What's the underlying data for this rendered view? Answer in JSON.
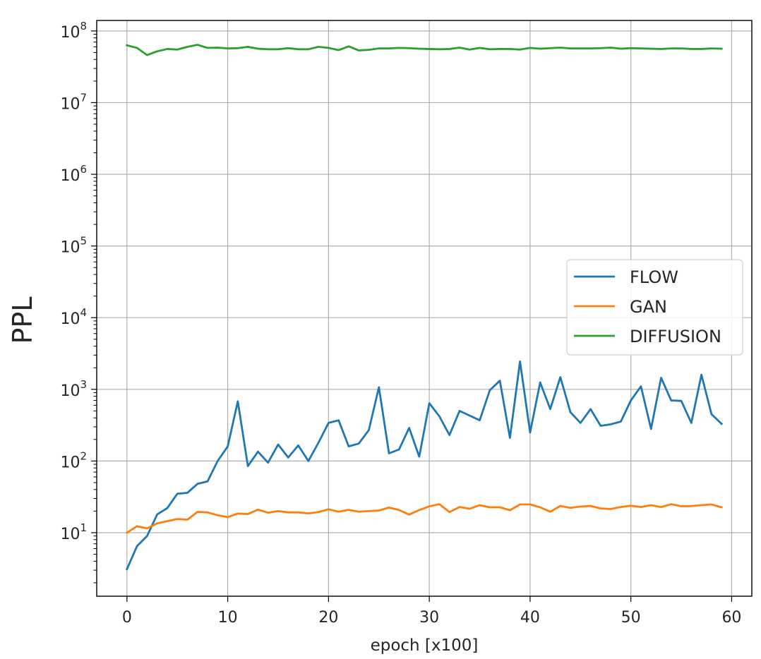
{
  "chart_data": {
    "type": "line",
    "xlabel": "epoch [x100]",
    "ylabel": "PPL",
    "yscale": "log",
    "xlim": [
      -3,
      62
    ],
    "ylim": [
      1.3,
      140000000
    ],
    "x_ticks": [
      0,
      10,
      20,
      30,
      40,
      50,
      60
    ],
    "x_tick_labels": [
      "0",
      "10",
      "20",
      "30",
      "40",
      "50",
      "60"
    ],
    "y_ticks": [
      10,
      100,
      1000,
      10000,
      100000,
      1000000,
      10000000,
      100000000
    ],
    "y_tick_labels": [
      {
        "base": "10",
        "exp": "1"
      },
      {
        "base": "10",
        "exp": "2"
      },
      {
        "base": "10",
        "exp": "3"
      },
      {
        "base": "10",
        "exp": "4"
      },
      {
        "base": "10",
        "exp": "5"
      },
      {
        "base": "10",
        "exp": "6"
      },
      {
        "base": "10",
        "exp": "7"
      },
      {
        "base": "10",
        "exp": "8"
      }
    ],
    "grid": true,
    "legend_position": "center-right",
    "x": [
      0,
      1,
      2,
      3,
      4,
      5,
      6,
      7,
      8,
      9,
      10,
      11,
      12,
      13,
      14,
      15,
      16,
      17,
      18,
      19,
      20,
      21,
      22,
      23,
      24,
      25,
      26,
      27,
      28,
      29,
      30,
      31,
      32,
      33,
      34,
      35,
      36,
      37,
      38,
      39,
      40,
      41,
      42,
      43,
      44,
      45,
      46,
      47,
      48,
      49,
      50,
      51,
      52,
      53,
      54,
      55,
      56,
      57,
      58,
      59
    ],
    "series": [
      {
        "name": "FLOW",
        "color": "#1f77b4",
        "values": [
          3.1,
          6.5,
          9,
          18,
          22,
          35,
          36,
          48,
          52,
          100,
          160,
          680,
          85,
          135,
          95,
          170,
          112,
          165,
          100,
          180,
          340,
          370,
          160,
          175,
          270,
          1070,
          128,
          145,
          290,
          115,
          640,
          420,
          230,
          500,
          430,
          370,
          970,
          1320,
          210,
          2450,
          250,
          1250,
          530,
          1480,
          480,
          340,
          530,
          310,
          325,
          355,
          700,
          1100,
          280,
          1450,
          700,
          690,
          340,
          1600,
          450,
          330
        ]
      },
      {
        "name": "GAN",
        "color": "#ff7f0e",
        "values": [
          10,
          12.3,
          11.5,
          13.5,
          14.5,
          15.5,
          15.2,
          19.5,
          19.2,
          17.5,
          16.5,
          18.5,
          18.2,
          21,
          19,
          20,
          19.2,
          19.2,
          18.6,
          19.4,
          21.2,
          19.6,
          20.8,
          19.6,
          20,
          20.4,
          22.4,
          20.7,
          17.9,
          20.7,
          23.3,
          25,
          19.4,
          22.8,
          21.6,
          24.2,
          22.6,
          22.6,
          20.6,
          24.8,
          24.8,
          22.6,
          19.6,
          23.6,
          22.2,
          23.2,
          23.6,
          21.8,
          21.4,
          22.8,
          23.8,
          22.8,
          24.2,
          22.8,
          25,
          23.4,
          23.5,
          24.2,
          24.8,
          22.6
        ]
      },
      {
        "name": "DIFFUSION",
        "color": "#2ca02c",
        "values": [
          63000000,
          58000000,
          46000000,
          52000000,
          56000000,
          55000000,
          60000000,
          64000000,
          58000000,
          58500000,
          57000000,
          57500000,
          60000000,
          56500000,
          55500000,
          55500000,
          57500000,
          55500000,
          55500000,
          60000000,
          58000000,
          54000000,
          61000000,
          53500000,
          54500000,
          57000000,
          57000000,
          58000000,
          57500000,
          56500000,
          56000000,
          55500000,
          56000000,
          58500000,
          55000000,
          58000000,
          55500000,
          56000000,
          56000000,
          55000000,
          58000000,
          56500000,
          57500000,
          58500000,
          57000000,
          57000000,
          57000000,
          57500000,
          58500000,
          56500000,
          57500000,
          57000000,
          56500000,
          56000000,
          57000000,
          57000000,
          56000000,
          56000000,
          57000000,
          56500000
        ]
      }
    ]
  }
}
